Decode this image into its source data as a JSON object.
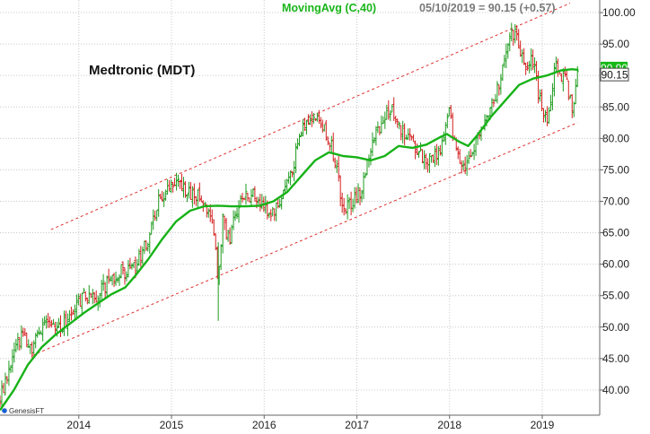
{
  "chart_data": {
    "type": "line",
    "title": "Medtronic (MDT)",
    "header": {
      "indicator": "MovingAvg (C,40)",
      "info": "05/10/2019 = 90.15 (+0.57)"
    },
    "credit": "GenesisFT",
    "ylim": [
      36,
      102
    ],
    "y_ticks": [
      "40.00",
      "45.00",
      "50.00",
      "55.00",
      "60.00",
      "65.00",
      "70.00",
      "75.00",
      "80.00",
      "85.00",
      "90.00",
      "95.00",
      "100.00"
    ],
    "x_ticks": [
      {
        "label": "2014",
        "x": 2014.0
      },
      {
        "label": "2015",
        "x": 2015.0
      },
      {
        "label": "2016",
        "x": 2016.0
      },
      {
        "label": "2017",
        "x": 2017.0
      },
      {
        "label": "2018",
        "x": 2018.0
      },
      {
        "label": "2019",
        "x": 2019.0
      }
    ],
    "xlim": [
      2013.15,
      2019.62
    ],
    "last_close": "90.15",
    "ma_last": "90.90",
    "price_path": [
      [
        2013.15,
        38.5
      ],
      [
        2013.3,
        45.5
      ],
      [
        2013.4,
        49.0
      ],
      [
        2013.5,
        46.5
      ],
      [
        2013.65,
        52.0
      ],
      [
        2013.8,
        50.0
      ],
      [
        2013.95,
        53.0
      ],
      [
        2014.05,
        55.0
      ],
      [
        2014.15,
        54.5
      ],
      [
        2014.3,
        57.0
      ],
      [
        2014.45,
        59.0
      ],
      [
        2014.55,
        58.5
      ],
      [
        2014.65,
        60.5
      ],
      [
        2014.75,
        64.0
      ],
      [
        2014.85,
        70.0
      ],
      [
        2014.95,
        71.5
      ],
      [
        2015.05,
        72.5
      ],
      [
        2015.2,
        71.5
      ],
      [
        2015.35,
        70.0
      ],
      [
        2015.45,
        67.0
      ],
      [
        2015.5,
        58.0
      ],
      [
        2015.55,
        67.0
      ],
      [
        2015.62,
        64.0
      ],
      [
        2015.7,
        68.5
      ],
      [
        2015.8,
        71.5
      ],
      [
        2015.95,
        70.0
      ],
      [
        2016.05,
        68.0
      ],
      [
        2016.15,
        69.0
      ],
      [
        2016.3,
        75.0
      ],
      [
        2016.4,
        81.0
      ],
      [
        2016.5,
        83.5
      ],
      [
        2016.6,
        82.5
      ],
      [
        2016.7,
        80.0
      ],
      [
        2016.78,
        76.0
      ],
      [
        2016.85,
        68.0
      ],
      [
        2016.95,
        70.0
      ],
      [
        2017.05,
        72.0
      ],
      [
        2017.15,
        78.0
      ],
      [
        2017.25,
        82.0
      ],
      [
        2017.38,
        85.0
      ],
      [
        2017.5,
        81.0
      ],
      [
        2017.6,
        79.0
      ],
      [
        2017.75,
        76.0
      ],
      [
        2017.9,
        78.0
      ],
      [
        2018.0,
        84.0
      ],
      [
        2018.05,
        79.0
      ],
      [
        2018.15,
        75.5
      ],
      [
        2018.22,
        76.0
      ],
      [
        2018.3,
        81.0
      ],
      [
        2018.4,
        84.0
      ],
      [
        2018.5,
        87.0
      ],
      [
        2018.55,
        90.0
      ],
      [
        2018.62,
        95.0
      ],
      [
        2018.7,
        97.0
      ],
      [
        2018.78,
        93.0
      ],
      [
        2018.82,
        90.0
      ],
      [
        2018.88,
        94.0
      ],
      [
        2018.95,
        88.0
      ],
      [
        2019.0,
        84.0
      ],
      [
        2019.05,
        83.0
      ],
      [
        2019.15,
        92.0
      ],
      [
        2019.25,
        89.0
      ],
      [
        2019.3,
        87.0
      ],
      [
        2019.33,
        85.0
      ],
      [
        2019.38,
        89.5
      ]
    ],
    "series": [
      {
        "name": "MovingAvg (C,40)",
        "color": "#17b217",
        "points": [
          [
            2013.15,
            36.8
          ],
          [
            2013.3,
            40.0
          ],
          [
            2013.45,
            44.0
          ],
          [
            2013.6,
            46.8
          ],
          [
            2013.75,
            48.8
          ],
          [
            2013.9,
            50.5
          ],
          [
            2014.05,
            52.2
          ],
          [
            2014.2,
            53.7
          ],
          [
            2014.35,
            55.2
          ],
          [
            2014.5,
            56.3
          ],
          [
            2014.6,
            58.0
          ],
          [
            2014.75,
            60.8
          ],
          [
            2014.9,
            64.0
          ],
          [
            2015.05,
            66.8
          ],
          [
            2015.2,
            68.5
          ],
          [
            2015.35,
            69.2
          ],
          [
            2015.5,
            69.3
          ],
          [
            2015.65,
            69.2
          ],
          [
            2015.8,
            69.2
          ],
          [
            2015.95,
            69.3
          ],
          [
            2016.1,
            70.0
          ],
          [
            2016.25,
            71.5
          ],
          [
            2016.4,
            74.0
          ],
          [
            2016.55,
            76.5
          ],
          [
            2016.7,
            77.8
          ],
          [
            2016.85,
            77.2
          ],
          [
            2017.0,
            77.0
          ],
          [
            2017.15,
            76.5
          ],
          [
            2017.3,
            77.2
          ],
          [
            2017.45,
            78.8
          ],
          [
            2017.6,
            78.5
          ],
          [
            2017.75,
            79.0
          ],
          [
            2017.9,
            80.2
          ],
          [
            2017.97,
            80.7
          ],
          [
            2018.1,
            79.5
          ],
          [
            2018.2,
            78.8
          ],
          [
            2018.3,
            80.5
          ],
          [
            2018.45,
            83.5
          ],
          [
            2018.6,
            86.0
          ],
          [
            2018.75,
            88.5
          ],
          [
            2018.9,
            89.5
          ],
          [
            2019.05,
            90.0
          ],
          [
            2019.2,
            90.8
          ],
          [
            2019.32,
            91.0
          ],
          [
            2019.39,
            90.9
          ]
        ]
      }
    ],
    "trend_channel": {
      "color": "#e03030",
      "upper": [
        [
          2013.7,
          65.5
        ],
        [
          2019.3,
          101.5
        ]
      ],
      "lower": [
        [
          2013.5,
          45.5
        ],
        [
          2019.38,
          82.5
        ]
      ]
    }
  }
}
